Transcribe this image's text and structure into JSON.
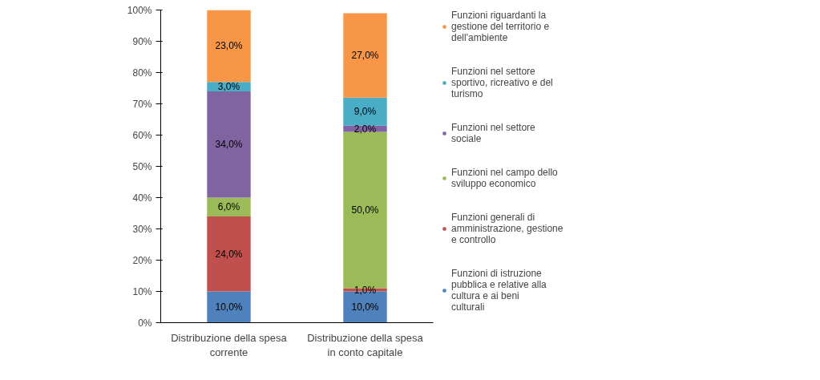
{
  "chart_data": {
    "type": "bar",
    "stacked": true,
    "categories": [
      "Distribuzione della spesa corrente",
      "Distribuzione della spesa in conto capitale"
    ],
    "ylim": [
      0,
      100
    ],
    "yticks": [
      {
        "value": 0,
        "label": "0%"
      },
      {
        "value": 10,
        "label": "10%"
      },
      {
        "value": 20,
        "label": "20%"
      },
      {
        "value": 30,
        "label": "30%"
      },
      {
        "value": 40,
        "label": "40%"
      },
      {
        "value": 50,
        "label": "50%"
      },
      {
        "value": 60,
        "label": "60%"
      },
      {
        "value": 70,
        "label": "70%"
      },
      {
        "value": 80,
        "label": "80%"
      },
      {
        "value": 90,
        "label": "90%"
      },
      {
        "value": 100,
        "label": "100%"
      }
    ],
    "grid": false,
    "legend": "right",
    "series": [
      {
        "name": "Funzioni di istruzione pubblica e relative alla cultura e ai beni culturali",
        "color": "#4f81bd",
        "values": [
          10,
          10
        ],
        "value_labels": [
          "10,0%",
          "10,0%"
        ]
      },
      {
        "name": "Funzioni generali di amministrazione, gestione e controllo",
        "color": "#c0504d",
        "values": [
          24,
          1
        ],
        "value_labels": [
          "24,0%",
          "1,0%"
        ]
      },
      {
        "name": "Funzioni nel campo dello sviluppo economico",
        "color": "#9bbb59",
        "values": [
          6,
          50
        ],
        "value_labels": [
          "6,0%",
          "50,0%"
        ]
      },
      {
        "name": "Funzioni nel settore sociale",
        "color": "#8064a2",
        "values": [
          34,
          2
        ],
        "value_labels": [
          "34,0%",
          "2,0%"
        ]
      },
      {
        "name": "Funzioni nel settore sportivo, ricreativo e del turismo",
        "color": "#4bacc6",
        "values": [
          3,
          9
        ],
        "value_labels": [
          "3,0%",
          "9,0%"
        ]
      },
      {
        "name": "Funzioni riguardanti la gestione del territorio e dell'ambiente",
        "color": "#f79646",
        "values": [
          23,
          27
        ],
        "value_labels": [
          "23,0%",
          "27,0%"
        ]
      }
    ]
  }
}
